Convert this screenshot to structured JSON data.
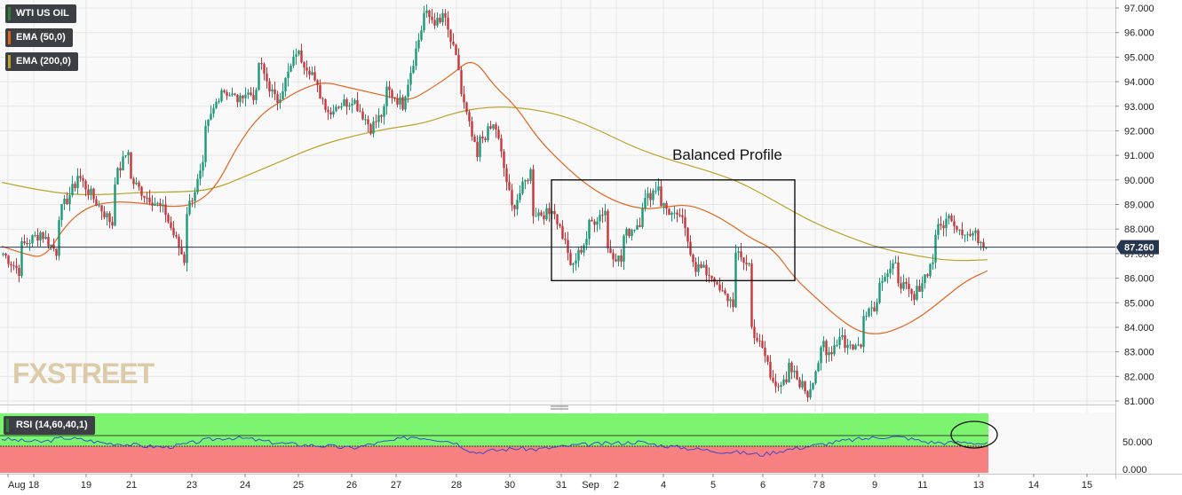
{
  "instrument": "WTI US OIL",
  "indicators": [
    {
      "label": "EMA (50,0)",
      "color": "#e0661f"
    },
    {
      "label": "EMA (200,0)",
      "color": "#b8a42a"
    }
  ],
  "rsi": {
    "label": "RSI (14,60,40,1)",
    "upper": 60,
    "lower": 40,
    "line_color": "#2f3fd4",
    "axis_label": "50.000",
    "zero_label": "0.000"
  },
  "watermark": "FXSTREET",
  "annotation": "Balanced Profile",
  "last_price": "87.260",
  "colors": {
    "up": "#1b9a76",
    "down": "#c7363b",
    "grid": "#e6e6e6",
    "rsi_high": "#7df46f",
    "rsi_low": "#f78181"
  },
  "chart_data": {
    "type": "candlestick",
    "ylim": [
      80.8,
      97.3
    ],
    "y_ticks": [
      "97.000",
      "96.000",
      "95.000",
      "94.000",
      "93.000",
      "92.000",
      "91.000",
      "90.000",
      "89.000",
      "88.000",
      "87.000",
      "86.000",
      "85.000",
      "84.000",
      "83.000",
      "82.000",
      "81.000"
    ],
    "x_tick_labels": [
      "Aug",
      "18",
      "19",
      "21",
      "23",
      "24",
      "25",
      "26",
      "27",
      "28",
      "30",
      "31",
      "Sep",
      "2",
      "4",
      "5",
      "6",
      "7",
      "8",
      "9",
      "11",
      "13",
      "14",
      "15"
    ],
    "price_path": [
      [
        87.0,
        86.2
      ],
      [
        87.3,
        87.8
      ],
      [
        87.9,
        87.0
      ],
      [
        88.5,
        89.9
      ],
      [
        90.3,
        89.2
      ],
      [
        89.2,
        88.2
      ],
      [
        89.8,
        91.5
      ],
      [
        90.0,
        89.2
      ],
      [
        89.3,
        88.6
      ],
      [
        88.4,
        86.6
      ],
      [
        88.6,
        90.6
      ],
      [
        91.8,
        93.8
      ],
      [
        93.7,
        93.2
      ],
      [
        93.6,
        93.4
      ],
      [
        94.8,
        93.1
      ],
      [
        93.2,
        95.0
      ],
      [
        95.3,
        94.3
      ],
      [
        94.0,
        92.6
      ],
      [
        93.0,
        93.2
      ],
      [
        93.5,
        92.3
      ],
      [
        92.0,
        92.9
      ],
      [
        93.7,
        93.0
      ],
      [
        93.5,
        96.4
      ],
      [
        96.8,
        96.3
      ],
      [
        97.0,
        94.4
      ],
      [
        93.8,
        90.8
      ],
      [
        91.5,
        92.3
      ],
      [
        92.1,
        88.4
      ],
      [
        89.0,
        90.5
      ],
      [
        88.7,
        88.6
      ],
      [
        89.1,
        87.0
      ],
      [
        86.2,
        87.7
      ],
      [
        88.1,
        88.8
      ],
      [
        87.3,
        86.6
      ],
      [
        87.7,
        88.4
      ],
      [
        89.0,
        89.9
      ],
      [
        89.1,
        88.3
      ],
      [
        88.8,
        86.3
      ],
      [
        86.5,
        86.0
      ],
      [
        85.6,
        85.0
      ],
      [
        87.0,
        86.5
      ],
      [
        84.0,
        82.4
      ],
      [
        81.9,
        81.6
      ],
      [
        82.4,
        81.4
      ],
      [
        81.1,
        83.4
      ],
      [
        82.7,
        83.8
      ],
      [
        83.3,
        83.2
      ],
      [
        84.6,
        85.0
      ],
      [
        86.0,
        86.5
      ],
      [
        86.0,
        85.0
      ],
      [
        85.4,
        86.8
      ],
      [
        87.8,
        88.6
      ],
      [
        88.3,
        87.7
      ],
      [
        87.9,
        87.26
      ]
    ],
    "ema50": [
      87.3,
      87.0,
      86.8,
      88.2,
      88.9,
      89.1,
      89.1,
      89.0,
      88.9,
      89.0,
      89.7,
      91.4,
      92.6,
      93.2,
      93.7,
      94.0,
      93.8,
      93.6,
      93.4,
      93.2,
      93.7,
      94.3,
      95.0,
      93.8,
      93.0,
      91.7,
      90.8,
      90.0,
      89.4,
      89.0,
      88.8,
      88.9,
      89.0,
      88.7,
      88.2,
      87.6,
      87.2,
      86.0,
      85.2,
      84.4,
      83.8,
      83.7,
      84.0,
      84.5,
      85.2,
      85.9,
      86.3
    ],
    "ema200": [
      89.9,
      89.6,
      89.4,
      89.4,
      89.5,
      89.5,
      89.6,
      90.2,
      90.8,
      91.4,
      91.8,
      92.1,
      92.3,
      92.8,
      93.0,
      92.9,
      92.6,
      92.0,
      91.3,
      90.8,
      90.4,
      89.9,
      89.1,
      88.3,
      87.7,
      87.2,
      86.9,
      86.7,
      86.75
    ],
    "balanced_profile_box": {
      "price_top": 90.0,
      "price_bottom": 85.9,
      "start": "Aug 31",
      "end": "Sep 7"
    },
    "rsi_values": [
      57,
      55,
      54,
      58,
      56,
      53,
      52,
      50,
      49,
      52,
      56,
      58,
      57,
      54,
      52,
      51,
      50,
      48,
      52,
      55,
      59,
      57,
      54,
      44,
      46,
      48,
      47,
      49,
      51,
      52,
      53,
      54,
      51,
      49,
      47,
      45,
      44,
      42,
      46,
      49,
      52,
      55,
      57,
      59,
      58,
      54,
      53,
      54,
      52
    ]
  }
}
